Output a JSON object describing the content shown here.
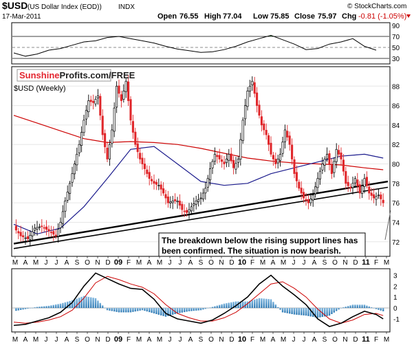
{
  "header": {
    "symbol": "$USD",
    "name": "(US Dollar Index (EOD))",
    "exchange": "INDX",
    "date": "17-Mar-2011",
    "copyright": "© StockCharts.com",
    "open_label": "Open",
    "open": "76.55",
    "high_label": "High",
    "high": "77.04",
    "low_label": "Low",
    "low": "75.85",
    "close_label": "Close",
    "close": "75.97",
    "chg_label": "Chg",
    "chg": "-0.81 (-1.05%)",
    "chg_color": "#cc0000"
  },
  "watermark": {
    "brand_a": "Sunshine",
    "brand_b": "Profits.com/FREE"
  },
  "main_label": "$USD (Weekly)",
  "annotation": {
    "line1": "The breakdown below the rising support lines has",
    "line2": "been confirmed. The situation is now bearish."
  },
  "x_axis_labels": [
    "M",
    "A",
    "M",
    "J",
    "J",
    "A",
    "S",
    "O",
    "N",
    "D",
    "09",
    "F",
    "M",
    "A",
    "M",
    "J",
    "J",
    "A",
    "S",
    "O",
    "N",
    "D",
    "10",
    "F",
    "M",
    "A",
    "M",
    "J",
    "J",
    "A",
    "S",
    "O",
    "N",
    "D",
    "11",
    "F",
    "M"
  ],
  "chart_data": [
    {
      "type": "line",
      "name": "rsi-panel",
      "yticks": [
        90,
        70,
        50,
        30
      ],
      "ylim": [
        20,
        95
      ],
      "reference_lines": [
        70,
        50,
        30
      ],
      "x": [
        0,
        5,
        10,
        15,
        20,
        25,
        30,
        35,
        40,
        45,
        50,
        55,
        60,
        65,
        70,
        75,
        80,
        85,
        90,
        95,
        100,
        105,
        110,
        115,
        120,
        125,
        130,
        135,
        140,
        145,
        150,
        155
      ],
      "values": [
        40,
        34,
        38,
        45,
        48,
        54,
        60,
        62,
        68,
        70,
        66,
        62,
        58,
        52,
        47,
        44,
        41,
        42,
        46,
        52,
        60,
        66,
        72,
        64,
        56,
        46,
        48,
        56,
        60,
        66,
        52,
        45
      ],
      "colors": {
        "line": "#000000",
        "overbought_fill": "#4a7d4a"
      }
    },
    {
      "type": "line",
      "name": "price-panel",
      "title": "$USD (Weekly)",
      "yticks": [
        72,
        74,
        76,
        78,
        80,
        82,
        84,
        86,
        88
      ],
      "ylim": [
        70.5,
        90
      ],
      "x_range_weeks": [
        0,
        160
      ],
      "price": {
        "x": [
          0,
          3,
          6,
          9,
          12,
          15,
          18,
          20,
          22,
          24,
          26,
          28,
          30,
          32,
          34,
          36,
          38,
          40,
          42,
          44,
          46,
          48,
          50,
          52,
          54,
          56,
          58,
          60,
          62,
          64,
          66,
          68,
          70,
          72,
          74,
          76,
          78,
          80,
          82,
          84,
          86,
          88,
          90,
          92,
          94,
          96,
          98,
          100,
          102,
          104,
          106,
          108,
          110,
          112,
          114,
          116,
          118,
          120,
          122,
          124,
          126,
          128,
          130,
          132,
          134,
          136,
          138,
          140,
          142,
          144,
          146,
          148,
          150,
          152,
          154,
          156,
          158
        ],
        "values": [
          73.5,
          72.6,
          72.3,
          73.4,
          73.6,
          73.1,
          72.6,
          74.0,
          76.2,
          78.0,
          80.0,
          82.0,
          84.5,
          86.5,
          86.3,
          87.0,
          83.0,
          80.5,
          83.5,
          88.0,
          86.5,
          88.5,
          84.5,
          82.0,
          80.5,
          79.5,
          78.5,
          78.0,
          77.8,
          77.0,
          76.0,
          76.2,
          76.2,
          75.3,
          75.0,
          75.6,
          76.2,
          76.5,
          77.5,
          79.5,
          81.0,
          80.5,
          80.0,
          81.0,
          79.6,
          80.5,
          84.5,
          87.5,
          88.5,
          86.0,
          84.0,
          83.0,
          81.0,
          80.0,
          81.0,
          83.5,
          82.0,
          79.0,
          77.5,
          76.5,
          76.0,
          76.8,
          78.5,
          80.0,
          81.0,
          79.0,
          81.5,
          80.5,
          78.0,
          77.5,
          78.5,
          77.0,
          78.5,
          77.0,
          76.5,
          76.8,
          76.0
        ]
      },
      "ma_fast": {
        "color": "#1a1a8c",
        "x": [
          0,
          10,
          20,
          30,
          40,
          50,
          60,
          70,
          80,
          90,
          100,
          110,
          120,
          130,
          140,
          150,
          158
        ],
        "values": [
          73.8,
          72.8,
          73.4,
          75.6,
          78.5,
          81.5,
          81.8,
          80.0,
          78.2,
          77.8,
          78.0,
          79.0,
          79.6,
          80.2,
          80.8,
          81.0,
          80.6
        ]
      },
      "ma_slow": {
        "color": "#cc0000",
        "x": [
          0,
          10,
          20,
          30,
          40,
          50,
          60,
          70,
          80,
          90,
          100,
          110,
          120,
          130,
          140,
          150,
          158
        ],
        "values": [
          85.0,
          84.2,
          83.4,
          82.6,
          82.2,
          82.3,
          82.2,
          82.0,
          81.6,
          81.1,
          80.6,
          80.3,
          80.1,
          80.0,
          79.9,
          79.6,
          79.4
        ]
      },
      "support_lines": [
        {
          "x": [
            0,
            160
          ],
          "values": [
            71.8,
            78.2
          ]
        },
        {
          "x": [
            0,
            160
          ],
          "values": [
            71.3,
            77.6
          ]
        }
      ]
    },
    {
      "type": "line",
      "name": "macd-panel",
      "yticks": [
        3,
        2,
        1,
        0,
        -1
      ],
      "ylim": [
        -2.2,
        3.6
      ],
      "macd": {
        "color": "#000000",
        "x": [
          0,
          5,
          10,
          15,
          20,
          25,
          30,
          35,
          40,
          45,
          50,
          55,
          60,
          65,
          70,
          75,
          80,
          85,
          90,
          95,
          100,
          105,
          110,
          115,
          120,
          125,
          130,
          135,
          140,
          145,
          150,
          155,
          158
        ],
        "values": [
          -1.6,
          -1.5,
          -1.2,
          -0.9,
          -0.4,
          0.5,
          2.0,
          3.2,
          2.7,
          2.2,
          1.8,
          1.7,
          0.8,
          -0.5,
          -1.0,
          -1.2,
          -1.4,
          -1.1,
          -0.5,
          0.2,
          1.0,
          2.2,
          3.0,
          2.0,
          1.2,
          0.3,
          -1.0,
          -1.7,
          -1.4,
          -0.8,
          -0.3,
          -0.6,
          -1.0
        ]
      },
      "signal": {
        "color": "#cc0000",
        "x": [
          0,
          5,
          10,
          15,
          20,
          25,
          30,
          35,
          40,
          45,
          50,
          55,
          60,
          65,
          70,
          75,
          80,
          85,
          90,
          95,
          100,
          105,
          110,
          115,
          120,
          125,
          130,
          135,
          140,
          145,
          150,
          155,
          158
        ],
        "values": [
          -1.3,
          -1.4,
          -1.3,
          -1.1,
          -0.8,
          -0.2,
          0.9,
          2.3,
          2.9,
          2.6,
          2.2,
          1.9,
          1.3,
          0.3,
          -0.5,
          -0.9,
          -1.2,
          -1.2,
          -0.9,
          -0.4,
          0.4,
          1.3,
          2.2,
          2.4,
          1.8,
          1.0,
          -0.1,
          -1.0,
          -1.4,
          -1.1,
          -0.6,
          -0.5,
          -0.7
        ]
      },
      "histogram_color": "#3d8fc4"
    }
  ]
}
